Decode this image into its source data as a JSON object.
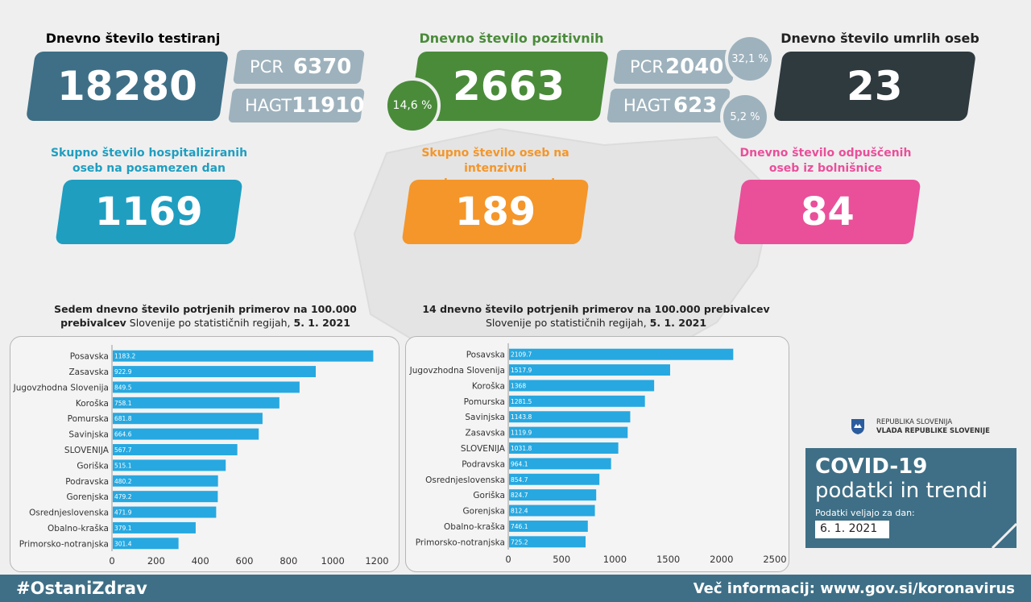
{
  "tests": {
    "title": "Dnevno število testiranj",
    "total": "18280",
    "pcr_label": "PCR",
    "pcr_value": "6370",
    "hagt_label": "HAGT",
    "hagt_value": "11910"
  },
  "positives": {
    "title": "Dnevno število pozitivnih",
    "total": "2663",
    "share": "14,6 %",
    "pcr_label": "PCR",
    "pcr_value": "2040",
    "pcr_share": "32,1 %",
    "hagt_label": "HAGT",
    "hagt_value": "623",
    "hagt_share": "5,2 %"
  },
  "deaths": {
    "title": "Dnevno število umrlih oseb",
    "value": "23"
  },
  "hospitalized": {
    "title_line1": "Skupno število hospitaliziranih",
    "title_line2": "oseb na posamezen dan",
    "value": "1169"
  },
  "icu": {
    "title_line1": "Skupno število oseb na intenzivni",
    "title_line2": "negi na posamezen dan",
    "value": "189"
  },
  "discharged": {
    "title_line1": "Dnevno število odpuščenih",
    "title_line2": "oseb iz bolnišnice",
    "value": "84"
  },
  "colors": {
    "tests": "#3e6f86",
    "positives": "#4a8b3a",
    "deaths": "#2f3a3f",
    "hospitalized": "#1f9ec0",
    "icu": "#f4962a",
    "discharged": "#ea4f9a",
    "bar": "#27a8e0",
    "sub": "#9eb2bd"
  },
  "chart_data": [
    {
      "type": "bar",
      "orientation": "horizontal",
      "title_bold": "Sedem dnevno število potrjenih primerov na 100.000 prebivalcev",
      "title_rest": " Slovenije po statističnih regijah, ",
      "title_date": "5. 1. 2021",
      "categories": [
        "Posavska",
        "Zasavska",
        "Jugovzhodna Slovenija",
        "Koroška",
        "Pomurska",
        "Savinjska",
        "SLOVENIJA",
        "Goriška",
        "Podravska",
        "Gorenjska",
        "Osrednjeslovenska",
        "Obalno-kraška",
        "Primorsko-notranjska"
      ],
      "values": [
        1183.2,
        922.9,
        849.5,
        758.1,
        681.8,
        664.6,
        567.7,
        515.1,
        480.2,
        479.2,
        471.9,
        379.1,
        301.4
      ],
      "xlim": [
        0,
        1200
      ],
      "ticks": [
        0,
        200,
        400,
        600,
        800,
        1000,
        1200
      ]
    },
    {
      "type": "bar",
      "orientation": "horizontal",
      "title_bold": "14 dnevno število potrjenih primerov na 100.000 prebivalcev",
      "title_rest": "Slovenije po statističnih regijah, ",
      "title_date": "5. 1. 2021",
      "categories": [
        "Posavska",
        "Jugovzhodna Slovenija",
        "Koroška",
        "Pomurska",
        "Savinjska",
        "Zasavska",
        "SLOVENIJA",
        "Podravska",
        "Osrednjeslovenska",
        "Goriška",
        "Gorenjska",
        "Obalno-kraška",
        "Primorsko-notranjska"
      ],
      "values": [
        2109.7,
        1517.9,
        1368,
        1281.5,
        1143.8,
        1119.9,
        1031.8,
        964.1,
        854.7,
        824.7,
        812.4,
        746.1,
        725.2
      ],
      "xlim": [
        0,
        2500
      ],
      "ticks": [
        0,
        500,
        1000,
        1500,
        2000,
        2500
      ]
    }
  ],
  "gov": {
    "line1": "REPUBLIKA SLOVENIJA",
    "line2": "VLADA REPUBLIKE SLOVENIJE"
  },
  "info": {
    "title": "COVID-19",
    "subtitle": "podatki in trendi",
    "valid_label": "Podatki veljajo za dan:",
    "date": "6. 1. 2021"
  },
  "footer": {
    "hashtag": "#OstaniZdrav",
    "more": "Več informacij: www.gov.si/koronavirus"
  }
}
